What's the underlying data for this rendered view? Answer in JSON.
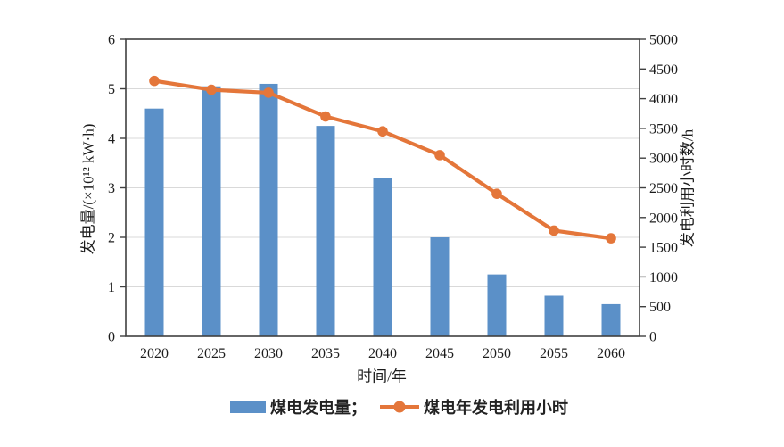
{
  "chart_data": {
    "type": "bar+line",
    "title": "",
    "categories": [
      "2020",
      "2025",
      "2030",
      "2035",
      "2040",
      "2045",
      "2050",
      "2055",
      "2060"
    ],
    "series": [
      {
        "name": "煤电发电量",
        "type": "bar",
        "axis": "left",
        "color": "#5B90C8",
        "values": [
          4.6,
          5.05,
          5.1,
          4.25,
          3.2,
          2.0,
          1.25,
          0.82,
          0.65
        ]
      },
      {
        "name": "煤电年发电利用小时",
        "type": "line",
        "axis": "right",
        "color": "#E4763A",
        "values": [
          4300,
          4150,
          4100,
          3700,
          3450,
          3050,
          2400,
          1780,
          1650
        ]
      }
    ],
    "xlabel": "时间/年",
    "ylabel_left": "发电量/(×10¹² kW·h)",
    "ylabel_right": "发电利用小时数/h",
    "ylim_left": [
      0,
      6
    ],
    "ytick_step_left": 1,
    "ylim_right": [
      0,
      5000
    ],
    "ytick_step_right": 500,
    "grid": "horizontal gridlines at left-axis integers 1-5",
    "legend_position": "bottom-center",
    "legend": [
      "煤电发电量；",
      "煤电年发电利用小时"
    ],
    "axis_color": "#404040",
    "grid_color": "#D9D9D9",
    "tick_label_color": "#1c1c1c"
  }
}
